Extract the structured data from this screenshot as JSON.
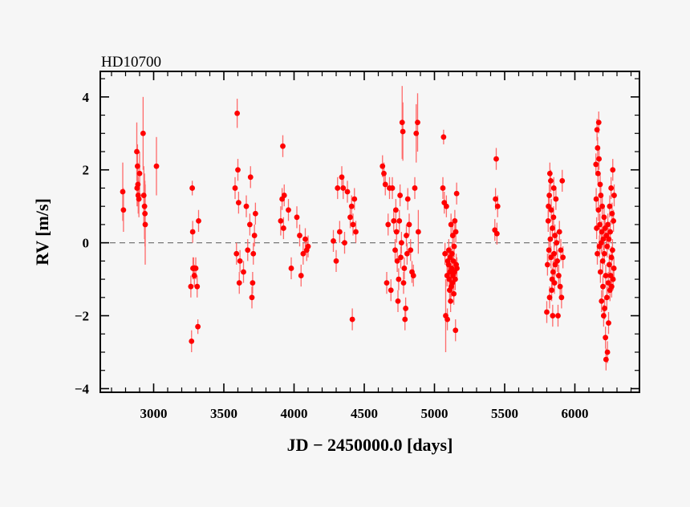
{
  "chart_data": {
    "type": "scatter",
    "title": "HD10700",
    "xlabel": "JD − 2450000.0 [days]",
    "ylabel": "RV [m/s]",
    "xlim": [
      2620,
      6460
    ],
    "ylim": [
      -4.1,
      4.7
    ],
    "x_ticks": [
      3000,
      3500,
      4000,
      4500,
      5000,
      5500,
      6000
    ],
    "x_tick_labels": [
      "3000",
      "3500",
      "4000",
      "4500",
      "5000",
      "5500",
      "6000"
    ],
    "y_ticks": [
      -4,
      -2,
      0,
      2,
      4
    ],
    "y_tick_labels": [
      "−4",
      "−2",
      "0",
      "2",
      "4"
    ],
    "zero_line": 0,
    "marker_color": "#ff0000",
    "errorbar_color": "#ff6a6a",
    "points": [
      [
        2780,
        1.4,
        0.8
      ],
      [
        2785,
        0.9,
        0.6
      ],
      [
        2880,
        2.5,
        0.8
      ],
      [
        2885,
        2.1,
        0.6
      ],
      [
        2888,
        1.6,
        0.6
      ],
      [
        2882,
        1.5,
        0.5
      ],
      [
        2890,
        1.3,
        0.5
      ],
      [
        2895,
        1.2,
        0.5
      ],
      [
        2900,
        1.9,
        0.6
      ],
      [
        2925,
        3.0,
        1.0
      ],
      [
        2930,
        1.3,
        0.8
      ],
      [
        2935,
        1.0,
        0.9
      ],
      [
        2938,
        0.8,
        0.9
      ],
      [
        2940,
        0.5,
        1.1
      ],
      [
        3020,
        2.1,
        0.8
      ],
      [
        3265,
        -1.2,
        0.3
      ],
      [
        3270,
        -2.7,
        0.3
      ],
      [
        3275,
        1.5,
        0.2
      ],
      [
        3278,
        0.3,
        0.3
      ],
      [
        3280,
        -0.7,
        0.3
      ],
      [
        3285,
        -0.7,
        0.3
      ],
      [
        3290,
        -0.9,
        0.3
      ],
      [
        3300,
        -0.7,
        0.3
      ],
      [
        3310,
        -1.2,
        0.3
      ],
      [
        3315,
        -2.3,
        0.2
      ],
      [
        3320,
        0.6,
        0.3
      ],
      [
        3580,
        1.5,
        0.3
      ],
      [
        3590,
        -0.3,
        0.3
      ],
      [
        3595,
        3.55,
        0.4
      ],
      [
        3600,
        2.0,
        0.3
      ],
      [
        3605,
        1.1,
        0.3
      ],
      [
        3610,
        -1.1,
        0.3
      ],
      [
        3615,
        -0.5,
        0.3
      ],
      [
        3640,
        -0.8,
        0.3
      ],
      [
        3660,
        1.0,
        0.3
      ],
      [
        3670,
        -0.2,
        0.3
      ],
      [
        3685,
        0.5,
        0.3
      ],
      [
        3690,
        1.8,
        0.3
      ],
      [
        3700,
        -1.5,
        0.3
      ],
      [
        3705,
        -1.1,
        0.3
      ],
      [
        3710,
        -0.3,
        0.3
      ],
      [
        3718,
        0.2,
        0.3
      ],
      [
        3725,
        0.8,
        0.3
      ],
      [
        3905,
        0.6,
        0.4
      ],
      [
        3915,
        1.2,
        0.3
      ],
      [
        3920,
        2.65,
        0.3
      ],
      [
        3925,
        0.4,
        0.3
      ],
      [
        3930,
        1.3,
        0.3
      ],
      [
        3960,
        0.9,
        0.3
      ],
      [
        3980,
        -0.7,
        0.3
      ],
      [
        4020,
        0.7,
        0.3
      ],
      [
        4040,
        0.2,
        0.3
      ],
      [
        4050,
        -0.9,
        0.3
      ],
      [
        4065,
        -0.3,
        0.3
      ],
      [
        4080,
        0.1,
        0.3
      ],
      [
        4090,
        -0.2,
        0.3
      ],
      [
        4100,
        -0.1,
        0.3
      ],
      [
        4280,
        0.05,
        0.3
      ],
      [
        4300,
        -0.5,
        0.3
      ],
      [
        4310,
        1.5,
        0.3
      ],
      [
        4325,
        0.3,
        0.3
      ],
      [
        4340,
        1.8,
        0.3
      ],
      [
        4350,
        1.5,
        0.3
      ],
      [
        4360,
        0.0,
        0.3
      ],
      [
        4380,
        1.4,
        0.3
      ],
      [
        4400,
        0.7,
        0.3
      ],
      [
        4410,
        1.0,
        0.3
      ],
      [
        4415,
        -2.1,
        0.3
      ],
      [
        4420,
        0.5,
        0.3
      ],
      [
        4430,
        1.2,
        0.3
      ],
      [
        4440,
        0.3,
        0.3
      ],
      [
        4630,
        2.1,
        0.3
      ],
      [
        4640,
        1.9,
        0.3
      ],
      [
        4650,
        1.6,
        0.3
      ],
      [
        4660,
        -1.1,
        0.3
      ],
      [
        4670,
        0.5,
        0.3
      ],
      [
        4680,
        1.5,
        0.3
      ],
      [
        4690,
        -1.3,
        0.3
      ],
      [
        4700,
        1.5,
        0.3
      ],
      [
        4710,
        0.6,
        0.3
      ],
      [
        4720,
        -0.2,
        0.3
      ],
      [
        4725,
        0.9,
        0.3
      ],
      [
        4730,
        0.3,
        0.3
      ],
      [
        4735,
        -0.5,
        0.3
      ],
      [
        4740,
        -1.6,
        0.3
      ],
      [
        4745,
        -1.0,
        0.3
      ],
      [
        4750,
        0.6,
        0.3
      ],
      [
        4755,
        1.3,
        0.3
      ],
      [
        4760,
        -0.4,
        0.3
      ],
      [
        4765,
        0.0,
        0.3
      ],
      [
        4770,
        3.3,
        1.0
      ],
      [
        4775,
        3.05,
        0.8
      ],
      [
        4780,
        -1.1,
        0.3
      ],
      [
        4785,
        -0.7,
        0.3
      ],
      [
        4790,
        -2.1,
        0.3
      ],
      [
        4795,
        -1.8,
        0.3
      ],
      [
        4800,
        0.2,
        0.3
      ],
      [
        4805,
        -0.3,
        0.3
      ],
      [
        4810,
        1.2,
        0.3
      ],
      [
        4820,
        0.5,
        0.3
      ],
      [
        4830,
        -0.2,
        0.3
      ],
      [
        4840,
        -0.8,
        0.3
      ],
      [
        4850,
        -0.9,
        0.3
      ],
      [
        4860,
        1.5,
        0.3
      ],
      [
        4870,
        3.0,
        0.8
      ],
      [
        4880,
        3.3,
        0.8
      ],
      [
        4885,
        0.3,
        0.6
      ],
      [
        5060,
        1.5,
        0.3
      ],
      [
        5065,
        2.9,
        0.2
      ],
      [
        5070,
        1.1,
        0.3
      ],
      [
        5075,
        -0.3,
        0.3
      ],
      [
        5080,
        -2.0,
        1.0
      ],
      [
        5085,
        1.0,
        0.3
      ],
      [
        5090,
        -0.9,
        0.3
      ],
      [
        5092,
        -2.1,
        0.3
      ],
      [
        5095,
        -0.5,
        0.3
      ],
      [
        5100,
        -0.6,
        0.3
      ],
      [
        5102,
        -0.2,
        0.3
      ],
      [
        5105,
        -1.0,
        0.3
      ],
      [
        5108,
        -1.3,
        0.3
      ],
      [
        5110,
        -0.8,
        0.3
      ],
      [
        5112,
        -0.4,
        0.3
      ],
      [
        5115,
        -1.6,
        0.3
      ],
      [
        5118,
        0.5,
        0.3
      ],
      [
        5120,
        -1.2,
        0.3
      ],
      [
        5122,
        -0.7,
        0.3
      ],
      [
        5125,
        -0.3,
        0.3
      ],
      [
        5128,
        -1.1,
        0.3
      ],
      [
        5130,
        0.2,
        0.3
      ],
      [
        5132,
        -0.9,
        0.3
      ],
      [
        5135,
        -0.5,
        0.3
      ],
      [
        5138,
        -1.4,
        0.3
      ],
      [
        5140,
        -0.1,
        0.3
      ],
      [
        5142,
        -0.8,
        0.3
      ],
      [
        5145,
        0.6,
        0.3
      ],
      [
        5148,
        -1.0,
        0.3
      ],
      [
        5150,
        -2.4,
        0.3
      ],
      [
        5152,
        0.3,
        0.3
      ],
      [
        5155,
        -0.6,
        0.3
      ],
      [
        5158,
        1.35,
        0.3
      ],
      [
        5160,
        -0.7,
        0.3
      ],
      [
        5430,
        0.35,
        0.3
      ],
      [
        5435,
        1.2,
        0.3
      ],
      [
        5440,
        2.3,
        0.3
      ],
      [
        5445,
        0.25,
        0.3
      ],
      [
        5450,
        1.0,
        0.3
      ],
      [
        5800,
        -1.9,
        0.3
      ],
      [
        5805,
        -0.6,
        0.3
      ],
      [
        5810,
        0.6,
        0.3
      ],
      [
        5812,
        1.0,
        0.3
      ],
      [
        5815,
        -0.2,
        0.3
      ],
      [
        5818,
        1.3,
        0.3
      ],
      [
        5820,
        -1.5,
        0.3
      ],
      [
        5822,
        1.9,
        0.3
      ],
      [
        5825,
        0.1,
        0.3
      ],
      [
        5828,
        1.7,
        0.3
      ],
      [
        5830,
        -0.4,
        0.3
      ],
      [
        5832,
        0.9,
        0.3
      ],
      [
        5835,
        -1.3,
        0.3
      ],
      [
        5838,
        -1.0,
        0.3
      ],
      [
        5840,
        0.4,
        0.3
      ],
      [
        5842,
        -2.0,
        0.3
      ],
      [
        5845,
        -0.8,
        0.3
      ],
      [
        5848,
        0.7,
        0.3
      ],
      [
        5850,
        1.5,
        0.3
      ],
      [
        5852,
        -0.3,
        0.3
      ],
      [
        5855,
        -1.1,
        0.3
      ],
      [
        5858,
        0.2,
        0.3
      ],
      [
        5860,
        -0.6,
        0.3
      ],
      [
        5865,
        1.2,
        0.3
      ],
      [
        5870,
        0.0,
        0.3
      ],
      [
        5875,
        -0.5,
        0.3
      ],
      [
        5880,
        -2.0,
        0.3
      ],
      [
        5885,
        -0.9,
        0.3
      ],
      [
        5890,
        0.3,
        0.3
      ],
      [
        5895,
        -1.2,
        0.3
      ],
      [
        5900,
        -0.2,
        0.3
      ],
      [
        5905,
        -1.5,
        0.3
      ],
      [
        5910,
        1.7,
        0.3
      ],
      [
        5915,
        -0.4,
        0.3
      ],
      [
        6150,
        2.15,
        0.3
      ],
      [
        6152,
        1.2,
        0.3
      ],
      [
        6155,
        0.4,
        0.3
      ],
      [
        6158,
        3.1,
        0.3
      ],
      [
        6160,
        -0.3,
        0.3
      ],
      [
        6162,
        2.6,
        0.3
      ],
      [
        6165,
        1.9,
        0.3
      ],
      [
        6168,
        0.9,
        0.3
      ],
      [
        6170,
        3.3,
        0.3
      ],
      [
        6172,
        2.3,
        0.3
      ],
      [
        6175,
        -0.1,
        0.3
      ],
      [
        6178,
        0.5,
        0.3
      ],
      [
        6180,
        1.6,
        0.3
      ],
      [
        6182,
        -0.8,
        0.3
      ],
      [
        6185,
        1.3,
        0.3
      ],
      [
        6188,
        0.0,
        0.3
      ],
      [
        6190,
        -1.6,
        0.3
      ],
      [
        6192,
        0.3,
        0.3
      ],
      [
        6195,
        1.0,
        0.3
      ],
      [
        6198,
        -0.5,
        0.3
      ],
      [
        6200,
        -1.2,
        0.3
      ],
      [
        6202,
        0.1,
        0.3
      ],
      [
        6205,
        -2.0,
        0.3
      ],
      [
        6208,
        0.7,
        0.3
      ],
      [
        6210,
        -0.3,
        0.3
      ],
      [
        6212,
        -1.8,
        0.3
      ],
      [
        6215,
        0.4,
        0.3
      ],
      [
        6218,
        -2.6,
        0.3
      ],
      [
        6220,
        -0.9,
        0.3
      ],
      [
        6222,
        -3.2,
        0.3
      ],
      [
        6225,
        0.2,
        0.3
      ],
      [
        6228,
        -1.5,
        0.3
      ],
      [
        6230,
        -0.1,
        0.3
      ],
      [
        6232,
        -3.0,
        0.3
      ],
      [
        6235,
        0.5,
        0.3
      ],
      [
        6238,
        -1.1,
        0.3
      ],
      [
        6240,
        -2.2,
        0.3
      ],
      [
        6242,
        0.1,
        0.3
      ],
      [
        6245,
        -0.6,
        0.3
      ],
      [
        6248,
        1.0,
        0.3
      ],
      [
        6250,
        -1.3,
        0.3
      ],
      [
        6252,
        0.3,
        0.3
      ],
      [
        6255,
        -0.9,
        0.3
      ],
      [
        6258,
        1.5,
        0.3
      ],
      [
        6260,
        -0.4,
        0.3
      ],
      [
        6262,
        -1.2,
        0.3
      ],
      [
        6265,
        0.8,
        0.3
      ],
      [
        6268,
        -0.2,
        0.3
      ],
      [
        6270,
        2.0,
        0.3
      ],
      [
        6272,
        -1.0,
        0.3
      ],
      [
        6275,
        0.6,
        0.3
      ],
      [
        6278,
        -0.7,
        0.3
      ],
      [
        6280,
        1.3,
        0.3
      ]
    ]
  }
}
